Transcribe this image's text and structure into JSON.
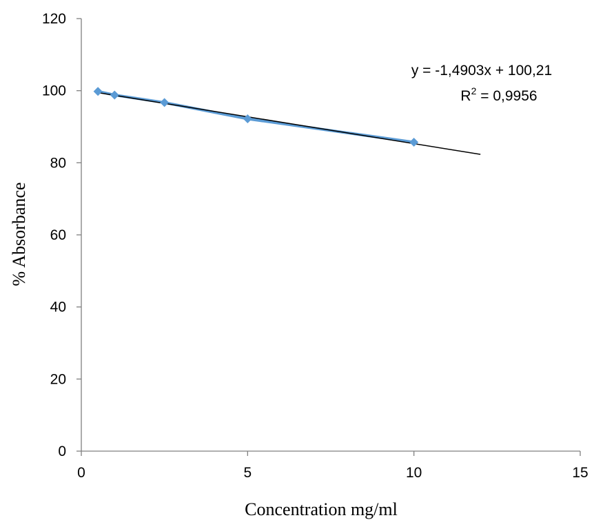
{
  "chart_data": {
    "type": "scatter",
    "title": "",
    "xlabel": "Concentration mg/ml",
    "ylabel": "% Absorbance",
    "xlim": [
      0,
      15
    ],
    "ylim": [
      0,
      120
    ],
    "x_ticks": [
      0,
      5,
      10,
      15
    ],
    "y_ticks": [
      0,
      20,
      40,
      60,
      80,
      100,
      120
    ],
    "grid": false,
    "legend": "none",
    "series": [
      {
        "x": [
          0.5,
          1,
          2.5,
          5,
          10
        ],
        "y": [
          99.8,
          98.8,
          96.7,
          92.2,
          85.7
        ],
        "color": "#5b9bd5",
        "marker": "diamond"
      }
    ],
    "trendline": {
      "type": "linear",
      "slope": -1.4903,
      "intercept": 100.21,
      "x_start": 0.5,
      "x_end": 12,
      "color": "#000000"
    },
    "annotations": {
      "equation": "y = -1,4903x + 100,21",
      "r_squared_prefix": "R",
      "r_squared_sup": "2",
      "r_squared_value": " = 0,9956"
    }
  }
}
